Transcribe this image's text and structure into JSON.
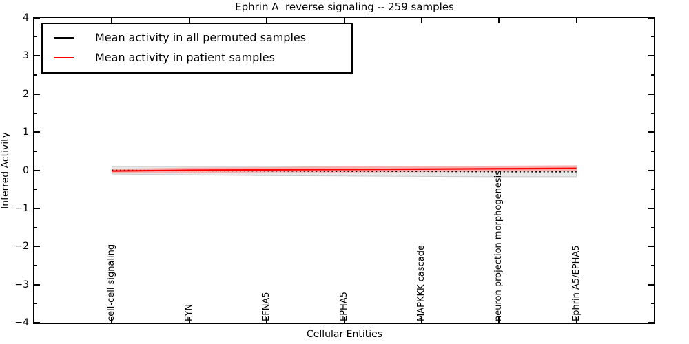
{
  "title": "Ephrin A  reverse signaling -- 259 samples",
  "axes": {
    "xlabel": "Cellular Entities",
    "ylabel": "Inferred Activity",
    "y_tick_labels": [
      "4",
      "3",
      "2",
      "1",
      "0",
      "−1",
      "−2",
      "−3",
      "−4"
    ],
    "y_tick_values": [
      4,
      3,
      2,
      1,
      0,
      -1,
      -2,
      -3,
      -4
    ],
    "y_minor_tick_values": [
      3.5,
      2.5,
      1.5,
      0.5,
      -0.5,
      -1.5,
      -2.5,
      -3.5
    ]
  },
  "legend": {
    "items": [
      {
        "label": "Mean activity in all permuted samples",
        "color": "#000000"
      },
      {
        "label": "Mean activity in patient samples",
        "color": "#ff0000"
      }
    ]
  },
  "chart_data": {
    "type": "line",
    "title": "Ephrin A  reverse signaling -- 259 samples",
    "xlabel": "Cellular Entities",
    "ylabel": "Inferred Activity",
    "ylim": [
      -4,
      4
    ],
    "xlim": [
      -1,
      7
    ],
    "grid": false,
    "legend_position": "upper left",
    "categories": [
      "cell-cell signaling",
      "FYN",
      "EFNA5",
      "EPHA5",
      "MAPKKK cascade",
      "neuron projection morphogenesis",
      "Ephrin A5/EPHA5"
    ],
    "series": [
      {
        "name": "Mean activity in all permuted samples",
        "color": "#000000",
        "line_style": "dotted",
        "values": [
          0.0,
          -0.01,
          -0.02,
          -0.03,
          -0.03,
          -0.04,
          -0.04
        ],
        "std": [
          0.1,
          0.11,
          0.12,
          0.12,
          0.13,
          0.13,
          0.13
        ],
        "band_color": "#e8e8e8",
        "band_edge_color": "#c9c9c9"
      },
      {
        "name": "Mean activity in patient samples",
        "color": "#ff0000",
        "line_style": "solid",
        "values": [
          -0.02,
          0.0,
          0.01,
          0.02,
          0.03,
          0.04,
          0.05
        ],
        "std": [
          0.05,
          0.06,
          0.06,
          0.07,
          0.07,
          0.07,
          0.07
        ],
        "band_color": "#f6b0b0",
        "band_edge_color": "#f6b0b0"
      }
    ]
  }
}
